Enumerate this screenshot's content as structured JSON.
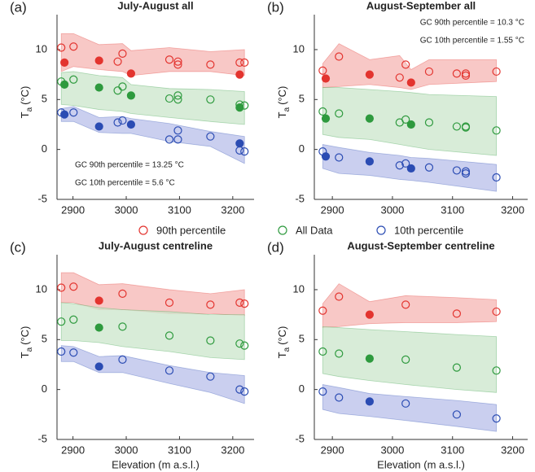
{
  "chart_data": [
    {
      "type": "scatter",
      "panel_label": "(a)",
      "title": "July-August all",
      "xlim": [
        2870,
        3240
      ],
      "xticks": [
        2900,
        3000,
        3100,
        3200
      ],
      "ylim": [
        -5,
        13.5
      ],
      "yticks": [
        -5,
        0,
        5,
        10
      ],
      "ylabel": {
        "text": "T",
        "subscript": "a",
        "unit": "(°C)"
      },
      "annotation_corner": "bottom-left",
      "annotations": [
        "GC 90th percentile = 13.25 °C",
        "GC 10th percentile = 5.6 °C"
      ],
      "series": [
        {
          "name": "90th percentile",
          "color": "#e3342f",
          "band_color": "#f5b5b3",
          "x": [
            2878,
            2884,
            2901,
            2949,
            2984,
            2993,
            3009,
            3081,
            3097,
            3097,
            3158,
            3213,
            3213,
            3222
          ],
          "values": [
            10.2,
            8.7,
            10.3,
            8.9,
            8.8,
            9.6,
            7.6,
            9.0,
            8.8,
            8.5,
            8.5,
            8.7,
            7.5,
            8.7
          ],
          "filled": [
            false,
            true,
            false,
            true,
            false,
            false,
            true,
            false,
            false,
            false,
            false,
            false,
            true,
            false
          ],
          "band": {
            "x": [
              2878,
              2901,
              2949,
              2993,
              3009,
              3081,
              3158,
              3222
            ],
            "upper": [
              11.6,
              11.6,
              10.5,
              10.6,
              9.9,
              10.2,
              9.8,
              10.0
            ],
            "lower": [
              7.8,
              8.3,
              8.0,
              7.8,
              7.4,
              7.8,
              7.8,
              7.4
            ]
          }
        },
        {
          "name": "All Data",
          "color": "#2e9a3e",
          "band_color": "#cbe6cb",
          "x": [
            2878,
            2884,
            2901,
            2949,
            2984,
            2993,
            3009,
            3081,
            3097,
            3097,
            3158,
            3213,
            3213,
            3222
          ],
          "values": [
            6.8,
            6.5,
            7.0,
            6.2,
            5.9,
            6.3,
            5.4,
            5.1,
            5.4,
            5.0,
            5.0,
            4.5,
            4.2,
            4.4
          ],
          "filled": [
            false,
            true,
            false,
            true,
            false,
            false,
            true,
            false,
            false,
            false,
            false,
            false,
            true,
            false
          ],
          "band": {
            "x": [
              2878,
              2901,
              2949,
              2993,
              3009,
              3081,
              3158,
              3222
            ],
            "upper": [
              7.7,
              7.8,
              7.4,
              7.2,
              6.5,
              6.1,
              6.0,
              5.8
            ],
            "lower": [
              4.5,
              4.4,
              4.0,
              3.8,
              3.6,
              3.2,
              2.8,
              2.5
            ]
          }
        },
        {
          "name": "10th percentile",
          "color": "#2b4cb3",
          "band_color": "#b8bfe9",
          "x": [
            2878,
            2884,
            2901,
            2949,
            2984,
            2993,
            3009,
            3081,
            3097,
            3097,
            3158,
            3213,
            3213,
            3222
          ],
          "values": [
            3.7,
            3.5,
            3.7,
            2.3,
            2.7,
            2.9,
            2.5,
            1.0,
            1.9,
            1.0,
            1.3,
            0.6,
            -0.1,
            -0.2
          ],
          "filled": [
            false,
            true,
            false,
            true,
            false,
            false,
            true,
            false,
            false,
            false,
            false,
            true,
            false,
            false
          ],
          "band": {
            "x": [
              2878,
              2901,
              2949,
              2993,
              3009,
              3081,
              3158,
              3222
            ],
            "upper": [
              4.1,
              4.3,
              3.2,
              3.3,
              3.1,
              2.6,
              1.8,
              1.3
            ],
            "lower": [
              2.8,
              2.8,
              1.7,
              1.6,
              1.6,
              0.8,
              0.3,
              -1.4
            ]
          }
        }
      ]
    },
    {
      "type": "scatter",
      "panel_label": "(b)",
      "title": "August-September all",
      "xlim": [
        2870,
        3225
      ],
      "xticks": [
        2900,
        3000,
        3100,
        3200
      ],
      "ylim": [
        -5,
        13.5
      ],
      "yticks": [
        -5,
        0,
        5,
        10
      ],
      "ylabel": {
        "text": "T",
        "subscript": "a",
        "unit": "(°C)"
      },
      "annotation_corner": "top-right",
      "annotations": [
        "GC 90th percentile = 10.3 °C",
        "GC 10th percentile = 1.55 °C"
      ],
      "series": [
        {
          "color": "#e3342f",
          "band_color": "#f5b5b3",
          "x": [
            2884,
            2889,
            2911,
            2962,
            3012,
            3022,
            3031,
            3061,
            3107,
            3122,
            3122,
            3173
          ],
          "values": [
            7.9,
            7.1,
            9.3,
            7.5,
            7.2,
            8.5,
            6.7,
            7.8,
            7.6,
            7.6,
            7.4,
            7.8
          ],
          "filled": [
            false,
            true,
            false,
            true,
            false,
            false,
            true,
            false,
            false,
            false,
            false,
            false
          ],
          "band": {
            "x": [
              2884,
              2911,
              2962,
              3012,
              3031,
              3061,
              3173
            ],
            "upper": [
              8.6,
              10.6,
              9.0,
              9.4,
              8.0,
              9.0,
              9.0
            ],
            "lower": [
              6.2,
              6.3,
              6.5,
              6.2,
              6.0,
              6.5,
              6.8
            ]
          }
        },
        {
          "color": "#2e9a3e",
          "band_color": "#cbe6cb",
          "x": [
            2884,
            2889,
            2911,
            2962,
            3012,
            3022,
            3031,
            3061,
            3107,
            3122,
            3122,
            3173
          ],
          "values": [
            3.8,
            3.1,
            3.6,
            3.1,
            2.7,
            3.0,
            2.5,
            2.7,
            2.3,
            2.3,
            2.2,
            1.9
          ],
          "filled": [
            false,
            true,
            false,
            true,
            false,
            false,
            true,
            false,
            false,
            false,
            false,
            false
          ],
          "band": {
            "x": [
              2884,
              2911,
              2962,
              3012,
              3031,
              3061,
              3173
            ],
            "upper": [
              6.2,
              6.2,
              6.0,
              5.8,
              5.7,
              5.5,
              5.3
            ],
            "lower": [
              1.5,
              1.2,
              1.0,
              0.5,
              0.3,
              0.0,
              -0.6
            ]
          }
        },
        {
          "color": "#2b4cb3",
          "band_color": "#b8bfe9",
          "x": [
            2884,
            2889,
            2911,
            2962,
            3012,
            3022,
            3031,
            3061,
            3107,
            3122,
            3122,
            3173
          ],
          "values": [
            -0.2,
            -0.7,
            -0.8,
            -1.2,
            -1.6,
            -1.4,
            -1.9,
            -1.8,
            -2.1,
            -2.2,
            -2.4,
            -2.8
          ],
          "filled": [
            false,
            true,
            false,
            true,
            false,
            false,
            true,
            false,
            false,
            false,
            false,
            false
          ],
          "band": {
            "x": [
              2884,
              2911,
              2962,
              3012,
              3031,
              3061,
              3173
            ],
            "upper": [
              0.5,
              0.2,
              -0.3,
              -0.6,
              -0.8,
              -0.9,
              -1.5
            ],
            "lower": [
              -1.9,
              -2.4,
              -2.6,
              -3.0,
              -3.1,
              -3.3,
              -4.2
            ]
          }
        }
      ]
    },
    {
      "type": "scatter",
      "panel_label": "(c)",
      "title": "July-August centreline",
      "xlim": [
        2870,
        3240
      ],
      "xticks": [
        2900,
        3000,
        3100,
        3200
      ],
      "ylim": [
        -5,
        13.5
      ],
      "yticks": [
        -5,
        0,
        5,
        10
      ],
      "ylabel": {
        "text": "T",
        "subscript": "a",
        "unit": "(°C)"
      },
      "xlabel": "Elevation (m a.s.l.)",
      "series": [
        {
          "color": "#e3342f",
          "band_color": "#f5b5b3",
          "x": [
            2878,
            2901,
            2949,
            2993,
            3081,
            3158,
            3213,
            3222
          ],
          "values": [
            10.2,
            10.3,
            8.9,
            9.6,
            8.7,
            8.5,
            8.7,
            8.6
          ],
          "filled": [
            false,
            false,
            true,
            false,
            false,
            false,
            false,
            false
          ],
          "band": {
            "x": [
              2878,
              2901,
              2949,
              2993,
              3081,
              3158,
              3222
            ],
            "upper": [
              11.7,
              11.7,
              10.5,
              10.6,
              10.0,
              9.6,
              10.0
            ],
            "lower": [
              8.7,
              8.7,
              8.0,
              8.0,
              7.6,
              7.6,
              7.4
            ]
          }
        },
        {
          "color": "#2e9a3e",
          "band_color": "#cbe6cb",
          "x": [
            2878,
            2901,
            2949,
            2993,
            3081,
            3158,
            3213,
            3222
          ],
          "values": [
            6.8,
            7.0,
            6.2,
            6.3,
            5.4,
            4.9,
            4.6,
            4.4
          ],
          "filled": [
            false,
            false,
            true,
            false,
            false,
            false,
            false,
            false
          ],
          "band": {
            "x": [
              2878,
              2901,
              2949,
              2993,
              3081,
              3158,
              3222
            ],
            "upper": [
              8.7,
              8.6,
              8.2,
              8.0,
              7.8,
              7.5,
              7.5
            ],
            "lower": [
              4.9,
              4.9,
              4.7,
              4.3,
              3.8,
              3.2,
              3.0
            ]
          }
        },
        {
          "color": "#2b4cb3",
          "band_color": "#b8bfe9",
          "x": [
            2878,
            2901,
            2949,
            2993,
            3081,
            3158,
            3213,
            3222
          ],
          "values": [
            3.8,
            3.7,
            2.3,
            3.0,
            1.9,
            1.3,
            0.0,
            -0.2
          ],
          "filled": [
            false,
            false,
            true,
            false,
            false,
            false,
            false,
            false
          ],
          "band": {
            "x": [
              2878,
              2901,
              2949,
              2993,
              3081,
              3158,
              3222
            ],
            "upper": [
              4.4,
              4.3,
              3.3,
              3.4,
              2.4,
              1.7,
              1.4
            ],
            "lower": [
              2.8,
              2.8,
              1.7,
              1.7,
              0.6,
              -0.3,
              -1.4
            ]
          }
        }
      ]
    },
    {
      "type": "scatter",
      "panel_label": "(d)",
      "title": "August-September centreline",
      "xlim": [
        2870,
        3225
      ],
      "xticks": [
        2900,
        3000,
        3100,
        3200
      ],
      "ylim": [
        -5,
        13.5
      ],
      "yticks": [
        -5,
        0,
        5,
        10
      ],
      "ylabel": {
        "text": "T",
        "subscript": "a",
        "unit": "(°C)"
      },
      "xlabel": "Elevation (m a.s.l.)",
      "series": [
        {
          "color": "#e3342f",
          "band_color": "#f5b5b3",
          "x": [
            2884,
            2911,
            2962,
            3022,
            3107,
            3173
          ],
          "values": [
            7.9,
            9.3,
            7.5,
            8.5,
            7.6,
            7.8
          ],
          "filled": [
            false,
            false,
            true,
            false,
            false,
            false
          ],
          "band": {
            "x": [
              2884,
              2911,
              2962,
              3022,
              3107,
              3173
            ],
            "upper": [
              8.6,
              10.6,
              8.8,
              9.4,
              9.2,
              9.0
            ],
            "lower": [
              6.2,
              6.3,
              6.6,
              6.7,
              6.7,
              6.8
            ]
          }
        },
        {
          "color": "#2e9a3e",
          "band_color": "#cbe6cb",
          "x": [
            2884,
            2911,
            2962,
            3022,
            3107,
            3173
          ],
          "values": [
            3.8,
            3.6,
            3.1,
            3.0,
            2.2,
            1.9
          ],
          "filled": [
            false,
            false,
            true,
            false,
            false,
            false
          ],
          "band": {
            "x": [
              2884,
              2911,
              2962,
              3022,
              3107,
              3173
            ],
            "upper": [
              6.3,
              6.2,
              6.0,
              5.8,
              5.5,
              5.3
            ],
            "lower": [
              1.6,
              1.3,
              0.9,
              0.5,
              0.0,
              -0.3
            ]
          }
        },
        {
          "color": "#2b4cb3",
          "band_color": "#b8bfe9",
          "x": [
            2884,
            2911,
            2962,
            3022,
            3107,
            3173
          ],
          "values": [
            -0.2,
            -0.8,
            -1.2,
            -1.4,
            -2.5,
            -2.9
          ],
          "filled": [
            false,
            false,
            true,
            false,
            false,
            false
          ],
          "band": {
            "x": [
              2884,
              2911,
              2962,
              3022,
              3107,
              3173
            ],
            "upper": [
              0.5,
              0.2,
              -0.4,
              -0.7,
              -1.1,
              -1.5
            ],
            "lower": [
              -2.0,
              -2.4,
              -2.7,
              -3.1,
              -3.7,
              -4.2
            ]
          }
        }
      ]
    }
  ]
}
